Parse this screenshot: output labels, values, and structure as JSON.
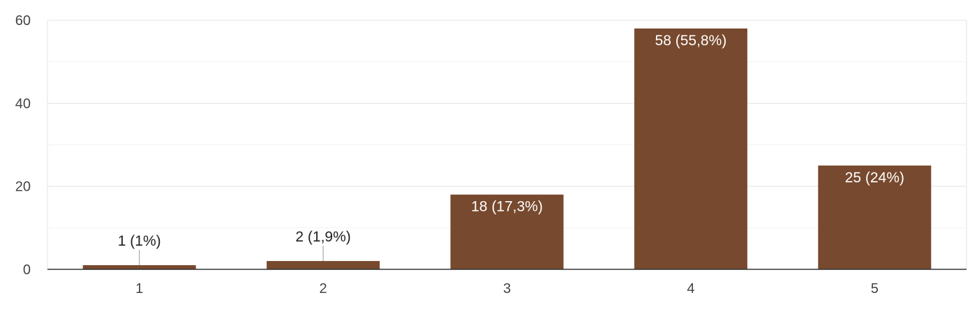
{
  "chart_data": {
    "type": "bar",
    "categories": [
      "1",
      "2",
      "3",
      "4",
      "5"
    ],
    "values": [
      1,
      2,
      18,
      58,
      25
    ],
    "data_labels": [
      "1 (1%)",
      "2 (1,9%)",
      "18 (17,3%)",
      "58 (55,8%)",
      "25 (24%)"
    ],
    "title": "",
    "xlabel": "",
    "ylabel": "",
    "ylim": [
      0,
      60
    ],
    "yticks": [
      "0",
      "20",
      "40",
      "60"
    ],
    "grid": true,
    "legend": "none",
    "colors": {
      "bar": "#77492e",
      "grid_major": "#e3e3e3",
      "grid_minor": "#f2f2f2",
      "axis": "#333333",
      "label_outside": "#222222",
      "label_inside": "#ffffff"
    }
  }
}
